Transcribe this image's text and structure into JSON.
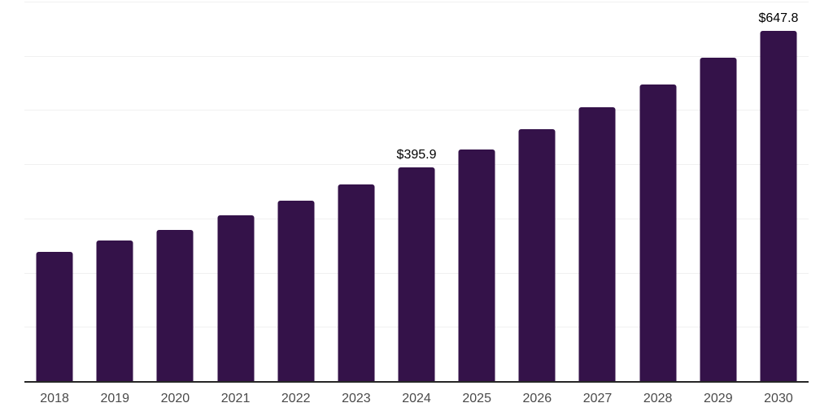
{
  "chart_data": {
    "type": "bar",
    "categories": [
      "2018",
      "2019",
      "2020",
      "2021",
      "2022",
      "2023",
      "2024",
      "2025",
      "2026",
      "2027",
      "2028",
      "2029",
      "2030"
    ],
    "values": [
      240.0,
      261.0,
      280.5,
      307.0,
      334.0,
      364.5,
      395.9,
      429.0,
      466.8,
      506.5,
      549.0,
      597.5,
      647.8
    ],
    "data_labels": {
      "2024": "$395.9",
      "2030": "$647.8"
    },
    "ylim": [
      0,
      700
    ],
    "gridline_step": 100,
    "grid": "horizontal-only",
    "legend": "none",
    "y_axis_labels_visible": false,
    "title": ""
  },
  "colors": {
    "background": "#ffffff",
    "bar": "#341249",
    "gridline": "#f0f0f0",
    "axis_line": "#262626",
    "tick_label": "#4a4a4a",
    "data_label": "#000000"
  }
}
